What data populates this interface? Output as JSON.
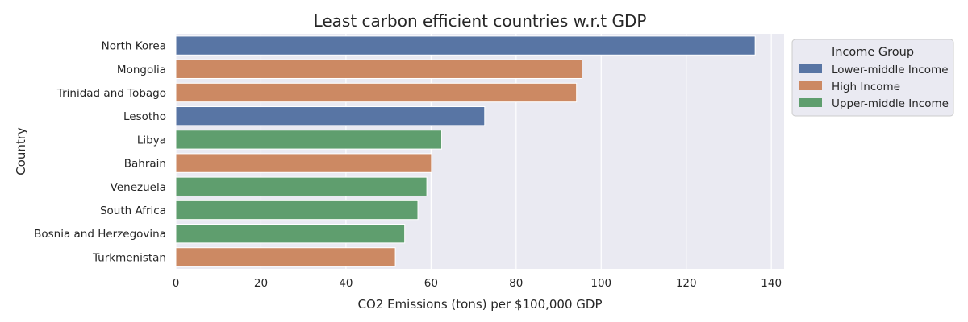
{
  "chart_data": {
    "type": "bar",
    "orientation": "horizontal",
    "title": "Least carbon efficient countries w.r.t GDP",
    "xlabel": "CO2 Emissions (tons) per $100,000 GDP",
    "ylabel": "Country",
    "xlim": [
      0,
      143
    ],
    "xticks": [
      0,
      20,
      40,
      60,
      80,
      100,
      120,
      140
    ],
    "grid": true,
    "legend": {
      "title": "Income Group",
      "placement": "outside-top-right",
      "entries": [
        {
          "name": "Lower-middle Income",
          "color": "#5875a4"
        },
        {
          "name": "High Income",
          "color": "#cc8963"
        },
        {
          "name": "Upper-middle Income",
          "color": "#5f9e6e"
        }
      ]
    },
    "bars": [
      {
        "category": "North Korea",
        "value": 136.2,
        "group": "Lower-middle Income"
      },
      {
        "category": "Mongolia",
        "value": 95.5,
        "group": "High Income"
      },
      {
        "category": "Trinidad and Tobago",
        "value": 94.2,
        "group": "High Income"
      },
      {
        "category": "Lesotho",
        "value": 72.6,
        "group": "Lower-middle Income"
      },
      {
        "category": "Libya",
        "value": 62.5,
        "group": "Upper-middle Income"
      },
      {
        "category": "Bahrain",
        "value": 60.1,
        "group": "High Income"
      },
      {
        "category": "Venezuela",
        "value": 59.0,
        "group": "Upper-middle Income"
      },
      {
        "category": "South Africa",
        "value": 56.9,
        "group": "Upper-middle Income"
      },
      {
        "category": "Bosnia and Herzegovina",
        "value": 53.8,
        "group": "Upper-middle Income"
      },
      {
        "category": "Turkmenistan",
        "value": 51.6,
        "group": "High Income"
      }
    ]
  }
}
